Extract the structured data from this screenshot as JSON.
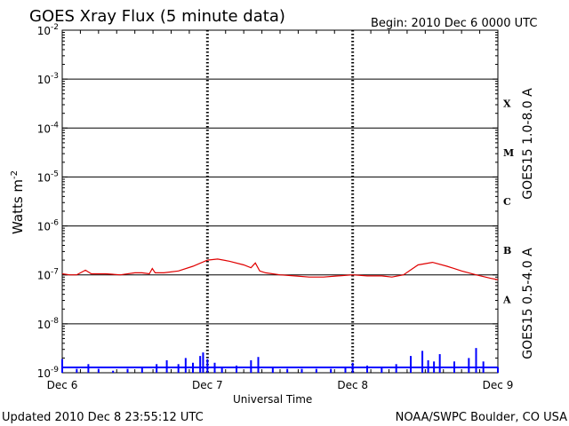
{
  "header": {
    "title": "GOES Xray Flux (5 minute data)",
    "begin": "Begin:  2010 Dec 6 0000 UTC"
  },
  "footer": {
    "updated": "Updated 2010 Dec  8 23:55:12 UTC",
    "credit": "NOAA/SWPC Boulder, CO USA"
  },
  "colors": {
    "long": "#e00000",
    "short": "#0000ff",
    "axis": "#000000"
  },
  "chart_data": {
    "type": "line",
    "xlabel": "Universal Time",
    "ylabel": "Watts m",
    "ylabel_sup": "-2",
    "y_scale": "log",
    "ylim": [
      1e-09,
      0.01
    ],
    "xlim_days": [
      0,
      3
    ],
    "x_tick_labels": [
      "Dec 6",
      "Dec 7",
      "Dec 8",
      "Dec 9"
    ],
    "y_ticks": [
      {
        "base": "10",
        "exp": "-2"
      },
      {
        "base": "10",
        "exp": "-3"
      },
      {
        "base": "10",
        "exp": "-4"
      },
      {
        "base": "10",
        "exp": "-5"
      },
      {
        "base": "10",
        "exp": "-6"
      },
      {
        "base": "10",
        "exp": "-7"
      },
      {
        "base": "10",
        "exp": "-8"
      },
      {
        "base": "10",
        "exp": "-9"
      }
    ],
    "flare_classes": [
      "X",
      "M",
      "C",
      "B",
      "A"
    ],
    "series": [
      {
        "name": "GOES15 1.0-8.0 A",
        "x": [
          0.0,
          0.05,
          0.1,
          0.16,
          0.2,
          0.3,
          0.4,
          0.5,
          0.55,
          0.6,
          0.62,
          0.64,
          0.7,
          0.8,
          0.9,
          1.0,
          1.07,
          1.15,
          1.25,
          1.3,
          1.33,
          1.36,
          1.4,
          1.5,
          1.6,
          1.7,
          1.8,
          1.9,
          2.0,
          2.1,
          2.2,
          2.27,
          2.35,
          2.45,
          2.55,
          2.65,
          2.75,
          2.85,
          2.95,
          3.0
        ],
        "values": [
          1.05e-07,
          1e-07,
          1e-07,
          1.25e-07,
          1.05e-07,
          1.05e-07,
          1e-07,
          1.1e-07,
          1.1e-07,
          1.05e-07,
          1.35e-07,
          1.1e-07,
          1.1e-07,
          1.2e-07,
          1.5e-07,
          2e-07,
          2.1e-07,
          1.9e-07,
          1.6e-07,
          1.4e-07,
          1.75e-07,
          1.2e-07,
          1.1e-07,
          1e-07,
          9.5e-08,
          9e-08,
          9e-08,
          9.5e-08,
          1e-07,
          9.5e-08,
          9.5e-08,
          9e-08,
          1e-07,
          1.6e-07,
          1.8e-07,
          1.5e-07,
          1.2e-07,
          1e-07,
          8.5e-08,
          8e-08
        ]
      },
      {
        "name": "GOES15 0.5-4.0 A",
        "x": [
          0.0,
          0.1,
          0.18,
          0.25,
          0.35,
          0.45,
          0.55,
          0.65,
          0.72,
          0.8,
          0.85,
          0.9,
          0.95,
          0.97,
          1.0,
          1.05,
          1.1,
          1.2,
          1.3,
          1.35,
          1.45,
          1.55,
          1.65,
          1.75,
          1.85,
          1.95,
          2.0,
          2.1,
          2.2,
          2.3,
          2.4,
          2.48,
          2.52,
          2.56,
          2.6,
          2.7,
          2.8,
          2.85,
          2.9,
          3.0
        ],
        "values": [
          1.9e-09,
          1.2e-09,
          1.5e-09,
          1.2e-09,
          1.1e-09,
          1.2e-09,
          1.3e-09,
          1.5e-09,
          1.8e-09,
          1.5e-09,
          2e-09,
          1.6e-09,
          2.2e-09,
          2.6e-09,
          1.9e-09,
          1.6e-09,
          1.3e-09,
          1.4e-09,
          1.8e-09,
          2.1e-09,
          1.3e-09,
          1.2e-09,
          1.2e-09,
          1.2e-09,
          1.2e-09,
          1.3e-09,
          1.6e-09,
          1.4e-09,
          1.3e-09,
          1.5e-09,
          2.2e-09,
          2.8e-09,
          1.8e-09,
          1.7e-09,
          2.4e-09,
          1.7e-09,
          2e-09,
          3.2e-09,
          1.7e-09,
          1.3e-09
        ]
      }
    ]
  }
}
